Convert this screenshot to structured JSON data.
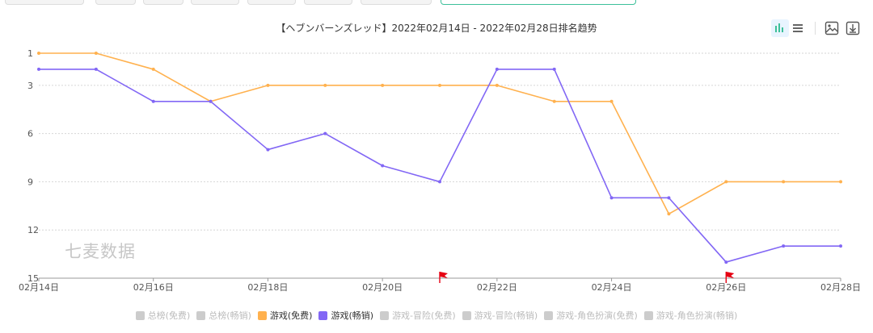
{
  "chart_data": {
    "type": "line",
    "title": "【ヘブンバーンズレッド】2022年02月14日 - 2022年02月28日排名趋势",
    "xlabel": "",
    "ylabel": "",
    "x": [
      "02月14日",
      "02月15日",
      "02月16日",
      "02月17日",
      "02月18日",
      "02月19日",
      "02月20日",
      "02月21日",
      "02月22日",
      "02月23日",
      "02月24日",
      "02月25日",
      "02月26日",
      "02月27日",
      "02月28日"
    ],
    "x_tick_labels": [
      "02月14日",
      "02月16日",
      "02月18日",
      "02月20日",
      "02月22日",
      "02月24日",
      "02月26日",
      "02月28日"
    ],
    "y_tick_labels": [
      "1",
      "3",
      "6",
      "9",
      "12",
      "15"
    ],
    "ylim": [
      1,
      15
    ],
    "y_inverted": true,
    "grid": true,
    "series": [
      {
        "name": "游戏(免费)",
        "color": "#ffb14e",
        "values": [
          1,
          1,
          2,
          4,
          3,
          3,
          3,
          3,
          3,
          4,
          4,
          11,
          9,
          9,
          9
        ]
      },
      {
        "name": "游戏(畅销)",
        "color": "#8267f5",
        "values": [
          2,
          2,
          4,
          4,
          7,
          6,
          8,
          9,
          2,
          2,
          10,
          10,
          14,
          13,
          13
        ]
      }
    ],
    "flags": [
      {
        "x": "02月21日",
        "color": "#e60012"
      },
      {
        "x": "02月26日",
        "color": "#e60012"
      }
    ]
  },
  "legend": [
    {
      "label": "总榜(免费)",
      "active": false,
      "color": "#cccccc"
    },
    {
      "label": "总榜(畅销)",
      "active": false,
      "color": "#cccccc"
    },
    {
      "label": "游戏(免费)",
      "active": true,
      "color": "#ffb14e"
    },
    {
      "label": "游戏(畅销)",
      "active": true,
      "color": "#8267f5"
    },
    {
      "label": "游戏-冒险(免费)",
      "active": false,
      "color": "#cccccc"
    },
    {
      "label": "游戏-冒险(畅销)",
      "active": false,
      "color": "#cccccc"
    },
    {
      "label": "游戏-角色扮演(免费)",
      "active": false,
      "color": "#cccccc"
    },
    {
      "label": "游戏-角色扮演(畅销)",
      "active": false,
      "color": "#cccccc"
    }
  ],
  "watermark": "七麦数据",
  "toolbar": {
    "icons": [
      "bar-chart-icon",
      "list-icon",
      "image-icon",
      "download-icon"
    ]
  }
}
